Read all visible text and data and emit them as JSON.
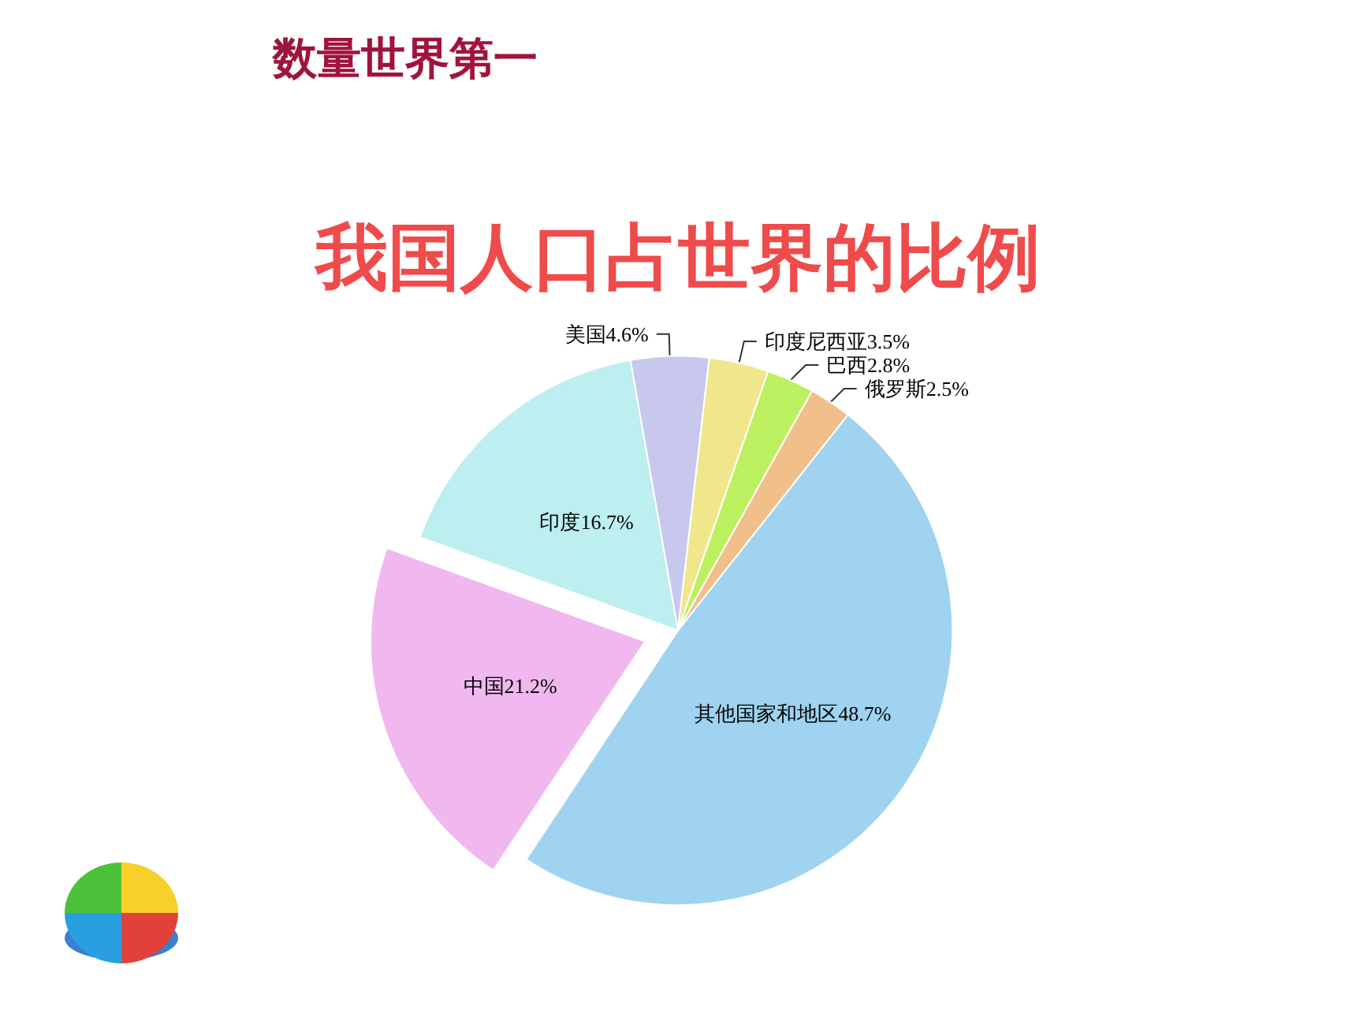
{
  "chart_data": {
    "type": "pie",
    "title": "我国人口占世界的比例",
    "subtitle": "数量世界第一",
    "categories": [
      "美国",
      "印度尼西亚",
      "巴西",
      "俄罗斯",
      "其他国家和地区",
      "中国",
      "印度"
    ],
    "values": [
      4.6,
      3.5,
      2.8,
      2.5,
      48.7,
      21.2,
      16.7
    ],
    "value_labels": [
      "4.6%",
      "3.5%",
      "2.8%",
      "2.5%",
      "48.7%",
      "21.2%",
      "16.7%"
    ],
    "colors": [
      "#c8c8ee",
      "#f0e68c",
      "#bdf060",
      "#f0bf8a",
      "#9fd3ef",
      "#f0b8ef",
      "#bdeef0"
    ],
    "legend": false
  }
}
